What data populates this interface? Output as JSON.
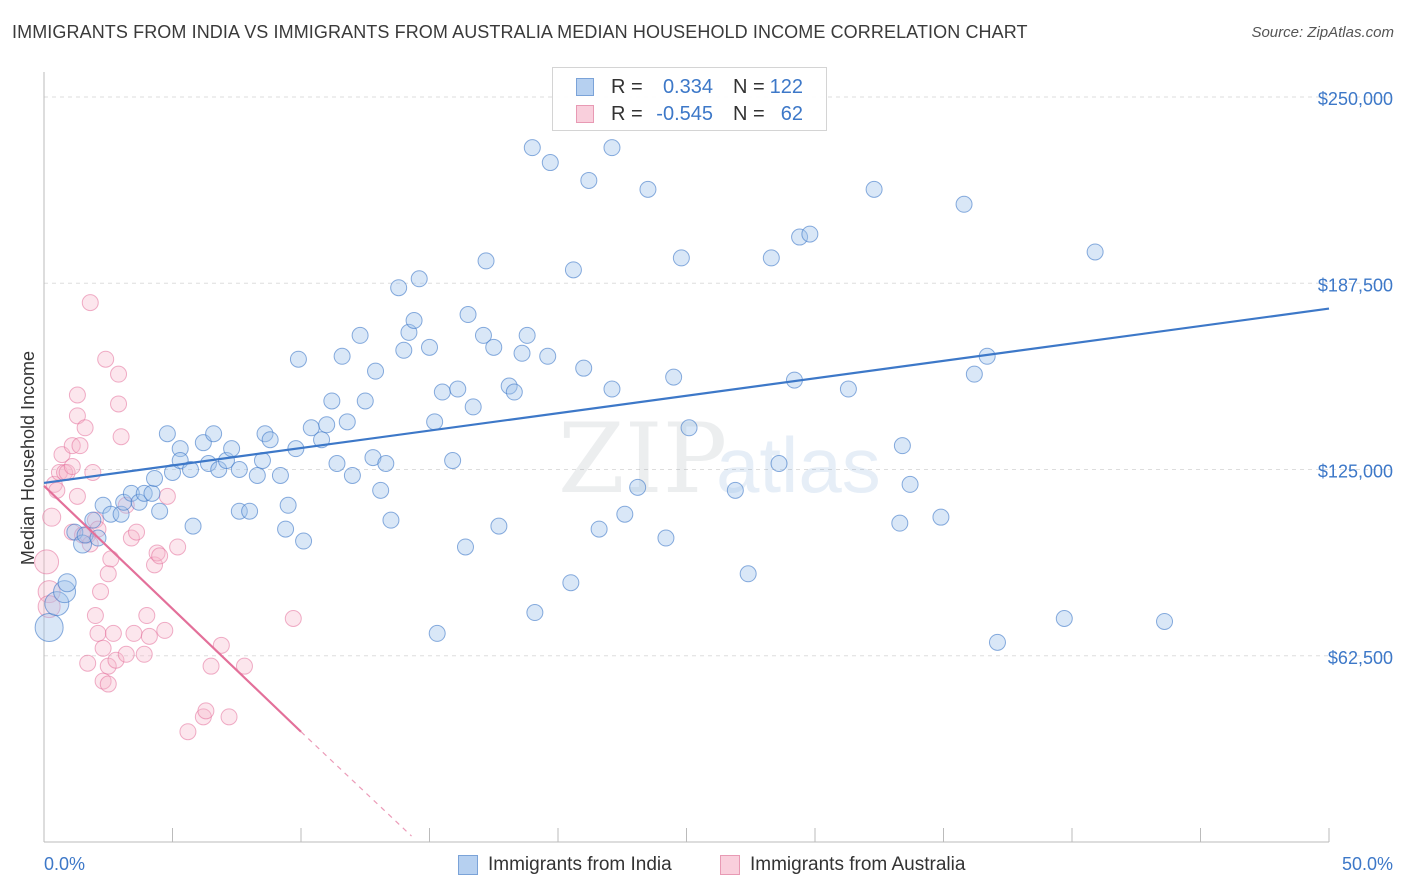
{
  "title": "IMMIGRANTS FROM INDIA VS IMMIGRANTS FROM AUSTRALIA MEDIAN HOUSEHOLD INCOME CORRELATION CHART",
  "source": "Source: ZipAtlas.com",
  "watermark": {
    "zip": "ZIP",
    "atlas": "atlas"
  },
  "colors": {
    "blue": "#3d78c8",
    "blue_fill": "#9fc3ea",
    "pink": "#e3709a",
    "pink_fill": "#f5b8cb",
    "grid": "#dddddd"
  },
  "legend_top": {
    "rows": [
      {
        "r_label": "R =",
        "r_value": "0.334",
        "n_label": "N =",
        "n_value": "122"
      },
      {
        "r_label": "R =",
        "r_value": "-0.545",
        "n_label": "N =",
        "n_value": "62"
      }
    ]
  },
  "legend_bottom": {
    "india": "Immigrants from India",
    "australia": "Immigrants from Australia"
  },
  "chart_data": {
    "type": "scatter",
    "title": "IMMIGRANTS FROM INDIA VS IMMIGRANTS FROM AUSTRALIA MEDIAN HOUSEHOLD INCOME CORRELATION CHART",
    "xlabel": "",
    "ylabel": "Median Household Income",
    "xlim": [
      0,
      50
    ],
    "ylim": [
      0,
      262500
    ],
    "x_tick_labels": [
      "0.0%",
      "50.0%"
    ],
    "y_ticks": [
      62500,
      125000,
      187500,
      250000
    ],
    "y_tick_labels": [
      "$62,500",
      "$125,000",
      "$187,500",
      "$250,000"
    ],
    "series": [
      {
        "name": "Immigrants from India",
        "r": 0.334,
        "n": 122,
        "trend": {
          "x": [
            0,
            50
          ],
          "y": [
            120500,
            179000
          ]
        },
        "points": [
          {
            "x": 0.2,
            "y": 72000,
            "s": 14
          },
          {
            "x": 0.5,
            "y": 80000,
            "s": 12
          },
          {
            "x": 0.8,
            "y": 84000,
            "s": 11
          },
          {
            "x": 0.9,
            "y": 87000,
            "s": 9
          },
          {
            "x": 1.2,
            "y": 104000,
            "s": 8
          },
          {
            "x": 1.5,
            "y": 100000,
            "s": 9
          },
          {
            "x": 1.6,
            "y": 103000,
            "s": 8
          },
          {
            "x": 1.9,
            "y": 108000,
            "s": 8
          },
          {
            "x": 2.1,
            "y": 102000,
            "s": 8
          },
          {
            "x": 2.3,
            "y": 113000,
            "s": 8
          },
          {
            "x": 2.6,
            "y": 110000,
            "s": 8
          },
          {
            "x": 3.0,
            "y": 110000,
            "s": 8
          },
          {
            "x": 3.1,
            "y": 114000,
            "s": 8
          },
          {
            "x": 3.4,
            "y": 117000,
            "s": 8
          },
          {
            "x": 3.7,
            "y": 114000,
            "s": 8
          },
          {
            "x": 3.9,
            "y": 117000,
            "s": 8
          },
          {
            "x": 4.2,
            "y": 117000,
            "s": 8
          },
          {
            "x": 4.3,
            "y": 122000,
            "s": 8
          },
          {
            "x": 4.5,
            "y": 111000,
            "s": 8
          },
          {
            "x": 4.8,
            "y": 137000,
            "s": 8
          },
          {
            "x": 5.0,
            "y": 124000,
            "s": 8
          },
          {
            "x": 5.3,
            "y": 132000,
            "s": 8
          },
          {
            "x": 5.3,
            "y": 128000,
            "s": 8
          },
          {
            "x": 5.7,
            "y": 125000,
            "s": 8
          },
          {
            "x": 5.8,
            "y": 106000,
            "s": 8
          },
          {
            "x": 6.2,
            "y": 134000,
            "s": 8
          },
          {
            "x": 6.4,
            "y": 127000,
            "s": 8
          },
          {
            "x": 6.6,
            "y": 137000,
            "s": 8
          },
          {
            "x": 6.8,
            "y": 125000,
            "s": 8
          },
          {
            "x": 7.1,
            "y": 128000,
            "s": 8
          },
          {
            "x": 7.3,
            "y": 132000,
            "s": 8
          },
          {
            "x": 7.6,
            "y": 125000,
            "s": 8
          },
          {
            "x": 7.6,
            "y": 111000,
            "s": 8
          },
          {
            "x": 8.0,
            "y": 111000,
            "s": 8
          },
          {
            "x": 8.3,
            "y": 123000,
            "s": 8
          },
          {
            "x": 8.5,
            "y": 128000,
            "s": 8
          },
          {
            "x": 8.6,
            "y": 137000,
            "s": 8
          },
          {
            "x": 8.8,
            "y": 135000,
            "s": 8
          },
          {
            "x": 9.2,
            "y": 123000,
            "s": 8
          },
          {
            "x": 9.4,
            "y": 105000,
            "s": 8
          },
          {
            "x": 9.5,
            "y": 113000,
            "s": 8
          },
          {
            "x": 9.8,
            "y": 132000,
            "s": 8
          },
          {
            "x": 9.9,
            "y": 162000,
            "s": 8
          },
          {
            "x": 10.1,
            "y": 101000,
            "s": 8
          },
          {
            "x": 10.4,
            "y": 139000,
            "s": 8
          },
          {
            "x": 10.8,
            "y": 135000,
            "s": 8
          },
          {
            "x": 11.0,
            "y": 140000,
            "s": 8
          },
          {
            "x": 11.2,
            "y": 148000,
            "s": 8
          },
          {
            "x": 11.4,
            "y": 127000,
            "s": 8
          },
          {
            "x": 11.6,
            "y": 163000,
            "s": 8
          },
          {
            "x": 11.8,
            "y": 141000,
            "s": 8
          },
          {
            "x": 12.0,
            "y": 123000,
            "s": 8
          },
          {
            "x": 12.3,
            "y": 170000,
            "s": 8
          },
          {
            "x": 12.5,
            "y": 148000,
            "s": 8
          },
          {
            "x": 12.8,
            "y": 129000,
            "s": 8
          },
          {
            "x": 12.9,
            "y": 158000,
            "s": 8
          },
          {
            "x": 13.1,
            "y": 118000,
            "s": 8
          },
          {
            "x": 13.3,
            "y": 127000,
            "s": 8
          },
          {
            "x": 13.5,
            "y": 108000,
            "s": 8
          },
          {
            "x": 13.8,
            "y": 186000,
            "s": 8
          },
          {
            "x": 14.0,
            "y": 165000,
            "s": 8
          },
          {
            "x": 14.2,
            "y": 171000,
            "s": 8
          },
          {
            "x": 14.4,
            "y": 175000,
            "s": 8
          },
          {
            "x": 14.6,
            "y": 189000,
            "s": 8
          },
          {
            "x": 15.0,
            "y": 166000,
            "s": 8
          },
          {
            "x": 15.2,
            "y": 141000,
            "s": 8
          },
          {
            "x": 15.3,
            "y": 70000,
            "s": 8
          },
          {
            "x": 15.5,
            "y": 151000,
            "s": 8
          },
          {
            "x": 15.9,
            "y": 128000,
            "s": 8
          },
          {
            "x": 16.1,
            "y": 152000,
            "s": 8
          },
          {
            "x": 16.4,
            "y": 99000,
            "s": 8
          },
          {
            "x": 16.5,
            "y": 177000,
            "s": 8
          },
          {
            "x": 16.7,
            "y": 146000,
            "s": 8
          },
          {
            "x": 17.1,
            "y": 170000,
            "s": 8
          },
          {
            "x": 17.2,
            "y": 195000,
            "s": 8
          },
          {
            "x": 17.5,
            "y": 166000,
            "s": 8
          },
          {
            "x": 17.7,
            "y": 106000,
            "s": 8
          },
          {
            "x": 18.1,
            "y": 153000,
            "s": 8
          },
          {
            "x": 18.3,
            "y": 151000,
            "s": 8
          },
          {
            "x": 18.6,
            "y": 164000,
            "s": 8
          },
          {
            "x": 18.8,
            "y": 170000,
            "s": 8
          },
          {
            "x": 19.0,
            "y": 233000,
            "s": 8
          },
          {
            "x": 19.1,
            "y": 77000,
            "s": 8
          },
          {
            "x": 19.6,
            "y": 163000,
            "s": 8
          },
          {
            "x": 19.7,
            "y": 228000,
            "s": 8
          },
          {
            "x": 20.5,
            "y": 87000,
            "s": 8
          },
          {
            "x": 20.6,
            "y": 192000,
            "s": 8
          },
          {
            "x": 21.0,
            "y": 159000,
            "s": 8
          },
          {
            "x": 21.2,
            "y": 222000,
            "s": 8
          },
          {
            "x": 21.6,
            "y": 105000,
            "s": 8
          },
          {
            "x": 22.1,
            "y": 233000,
            "s": 8
          },
          {
            "x": 22.1,
            "y": 152000,
            "s": 8
          },
          {
            "x": 22.6,
            "y": 110000,
            "s": 8
          },
          {
            "x": 23.1,
            "y": 119000,
            "s": 8
          },
          {
            "x": 23.5,
            "y": 219000,
            "s": 8
          },
          {
            "x": 24.2,
            "y": 102000,
            "s": 8
          },
          {
            "x": 24.5,
            "y": 156000,
            "s": 8
          },
          {
            "x": 24.8,
            "y": 196000,
            "s": 8
          },
          {
            "x": 25.1,
            "y": 139000,
            "s": 8
          },
          {
            "x": 26.9,
            "y": 118000,
            "s": 8
          },
          {
            "x": 27.4,
            "y": 90000,
            "s": 8
          },
          {
            "x": 28.3,
            "y": 196000,
            "s": 8
          },
          {
            "x": 28.6,
            "y": 127000,
            "s": 8
          },
          {
            "x": 29.2,
            "y": 155000,
            "s": 8
          },
          {
            "x": 29.4,
            "y": 203000,
            "s": 8
          },
          {
            "x": 29.8,
            "y": 204000,
            "s": 8
          },
          {
            "x": 31.3,
            "y": 152000,
            "s": 8
          },
          {
            "x": 32.3,
            "y": 219000,
            "s": 8
          },
          {
            "x": 33.3,
            "y": 107000,
            "s": 8
          },
          {
            "x": 33.4,
            "y": 133000,
            "s": 8
          },
          {
            "x": 33.7,
            "y": 120000,
            "s": 8
          },
          {
            "x": 34.9,
            "y": 109000,
            "s": 8
          },
          {
            "x": 35.8,
            "y": 214000,
            "s": 8
          },
          {
            "x": 36.2,
            "y": 157000,
            "s": 8
          },
          {
            "x": 36.7,
            "y": 163000,
            "s": 8
          },
          {
            "x": 37.1,
            "y": 67000,
            "s": 8
          },
          {
            "x": 39.7,
            "y": 75000,
            "s": 8
          },
          {
            "x": 40.9,
            "y": 198000,
            "s": 8
          },
          {
            "x": 43.6,
            "y": 74000,
            "s": 8
          }
        ]
      },
      {
        "name": "Immigrants from Australia",
        "r": -0.545,
        "n": 62,
        "trend": {
          "x": [
            0,
            10
          ],
          "y": [
            119500,
            37000
          ]
        },
        "trend_dashed": {
          "x": [
            10,
            14.3
          ],
          "y": [
            37000,
            2000
          ]
        },
        "points": [
          {
            "x": 0.1,
            "y": 94000,
            "s": 12
          },
          {
            "x": 0.2,
            "y": 84000,
            "s": 11
          },
          {
            "x": 0.2,
            "y": 79000,
            "s": 11
          },
          {
            "x": 0.3,
            "y": 109000,
            "s": 9
          },
          {
            "x": 0.4,
            "y": 120000,
            "s": 8
          },
          {
            "x": 0.5,
            "y": 118000,
            "s": 8
          },
          {
            "x": 0.6,
            "y": 124000,
            "s": 8
          },
          {
            "x": 0.7,
            "y": 130000,
            "s": 8
          },
          {
            "x": 0.8,
            "y": 124000,
            "s": 8
          },
          {
            "x": 0.9,
            "y": 124000,
            "s": 8
          },
          {
            "x": 1.1,
            "y": 126000,
            "s": 8
          },
          {
            "x": 1.1,
            "y": 133000,
            "s": 8
          },
          {
            "x": 1.1,
            "y": 104000,
            "s": 8
          },
          {
            "x": 1.3,
            "y": 150000,
            "s": 8
          },
          {
            "x": 1.3,
            "y": 143000,
            "s": 8
          },
          {
            "x": 1.3,
            "y": 116000,
            "s": 8
          },
          {
            "x": 1.4,
            "y": 133000,
            "s": 8
          },
          {
            "x": 1.5,
            "y": 103000,
            "s": 8
          },
          {
            "x": 1.6,
            "y": 139000,
            "s": 8
          },
          {
            "x": 1.7,
            "y": 103000,
            "s": 8
          },
          {
            "x": 1.7,
            "y": 60000,
            "s": 8
          },
          {
            "x": 1.8,
            "y": 100000,
            "s": 8
          },
          {
            "x": 1.8,
            "y": 181000,
            "s": 8
          },
          {
            "x": 1.9,
            "y": 124000,
            "s": 8
          },
          {
            "x": 2.0,
            "y": 108000,
            "s": 8
          },
          {
            "x": 2.0,
            "y": 76000,
            "s": 8
          },
          {
            "x": 2.1,
            "y": 105000,
            "s": 8
          },
          {
            "x": 2.1,
            "y": 70000,
            "s": 8
          },
          {
            "x": 2.2,
            "y": 84000,
            "s": 8
          },
          {
            "x": 2.3,
            "y": 65000,
            "s": 8
          },
          {
            "x": 2.3,
            "y": 54000,
            "s": 8
          },
          {
            "x": 2.4,
            "y": 162000,
            "s": 8
          },
          {
            "x": 2.5,
            "y": 90000,
            "s": 8
          },
          {
            "x": 2.5,
            "y": 59000,
            "s": 8
          },
          {
            "x": 2.5,
            "y": 53000,
            "s": 8
          },
          {
            "x": 2.6,
            "y": 95000,
            "s": 8
          },
          {
            "x": 2.7,
            "y": 70000,
            "s": 8
          },
          {
            "x": 2.8,
            "y": 61000,
            "s": 8
          },
          {
            "x": 2.9,
            "y": 147000,
            "s": 8
          },
          {
            "x": 2.9,
            "y": 157000,
            "s": 8
          },
          {
            "x": 3.0,
            "y": 136000,
            "s": 8
          },
          {
            "x": 3.2,
            "y": 113000,
            "s": 8
          },
          {
            "x": 3.2,
            "y": 63000,
            "s": 8
          },
          {
            "x": 3.4,
            "y": 102000,
            "s": 8
          },
          {
            "x": 3.5,
            "y": 70000,
            "s": 8
          },
          {
            "x": 3.6,
            "y": 104000,
            "s": 8
          },
          {
            "x": 3.9,
            "y": 63000,
            "s": 8
          },
          {
            "x": 4.0,
            "y": 76000,
            "s": 8
          },
          {
            "x": 4.1,
            "y": 69000,
            "s": 8
          },
          {
            "x": 4.3,
            "y": 93000,
            "s": 8
          },
          {
            "x": 4.4,
            "y": 97000,
            "s": 8
          },
          {
            "x": 4.5,
            "y": 96000,
            "s": 8
          },
          {
            "x": 4.7,
            "y": 71000,
            "s": 8
          },
          {
            "x": 4.8,
            "y": 116000,
            "s": 8
          },
          {
            "x": 5.2,
            "y": 99000,
            "s": 8
          },
          {
            "x": 5.6,
            "y": 37000,
            "s": 8
          },
          {
            "x": 6.2,
            "y": 42000,
            "s": 8
          },
          {
            "x": 6.3,
            "y": 44000,
            "s": 8
          },
          {
            "x": 6.5,
            "y": 59000,
            "s": 8
          },
          {
            "x": 6.9,
            "y": 66000,
            "s": 8
          },
          {
            "x": 7.2,
            "y": 42000,
            "s": 8
          },
          {
            "x": 7.8,
            "y": 59000,
            "s": 8
          },
          {
            "x": 9.7,
            "y": 75000,
            "s": 8
          }
        ]
      }
    ]
  }
}
